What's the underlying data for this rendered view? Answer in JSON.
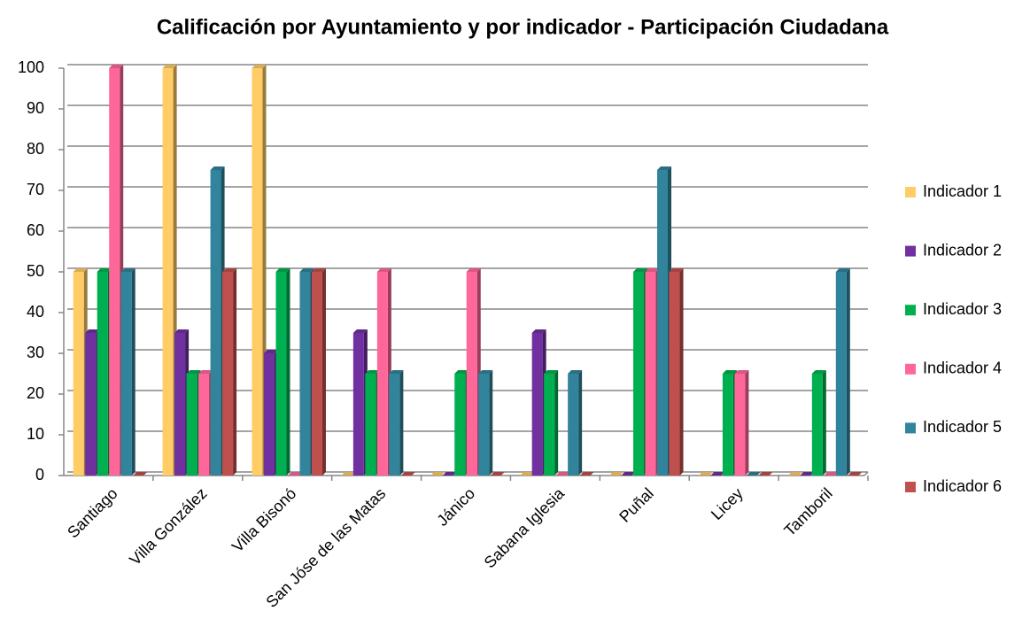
{
  "chart_data": {
    "type": "bar",
    "title": "Calificación por Ayuntamiento y por indicador - Participación Ciudadana",
    "categories": [
      "Santiago",
      "Villa González",
      "Villa Bisonó",
      "San Jóse de las Matas",
      "Jánico",
      "Sabana Iglesia",
      "Puñal",
      "Licey",
      "Tamboril"
    ],
    "series": [
      {
        "name": "Indicador 1",
        "color": "#FFCC66",
        "values": [
          50,
          100,
          100,
          0,
          0,
          0,
          0,
          0,
          0
        ]
      },
      {
        "name": "Indicador 2",
        "color": "#7030A0",
        "values": [
          35,
          35,
          30,
          35,
          0,
          35,
          0,
          0,
          0
        ]
      },
      {
        "name": "Indicador  3",
        "color": "#00B050",
        "values": [
          50,
          25,
          50,
          25,
          25,
          25,
          50,
          25,
          25
        ]
      },
      {
        "name": "Indicador 4",
        "color": "#FF6699",
        "values": [
          100,
          25,
          0,
          50,
          50,
          0,
          50,
          25,
          0
        ]
      },
      {
        "name": "Indicador 5",
        "color": "#31849B",
        "values": [
          50,
          75,
          50,
          25,
          25,
          25,
          75,
          0,
          50
        ]
      },
      {
        "name": "Indicador 6",
        "color": "#C0504D",
        "values": [
          0,
          50,
          50,
          0,
          0,
          0,
          50,
          0,
          0
        ]
      }
    ],
    "ylim": [
      0,
      100
    ],
    "yticks": [
      0,
      10,
      20,
      30,
      40,
      50,
      60,
      70,
      80,
      90,
      100
    ],
    "grid": true,
    "legend": "right"
  }
}
